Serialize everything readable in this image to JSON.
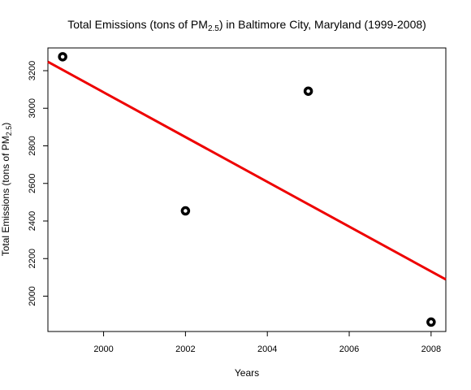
{
  "chart_data": {
    "type": "scatter",
    "title_prefix": "Total Emissions (tons of PM",
    "title_sub": "2.5",
    "title_suffix": ") in Baltimore City, Maryland (1999-2008)",
    "xlabel": "Years",
    "ylabel_prefix": "Total Emissions (tons of PM",
    "ylabel_sub": "2.5",
    "ylabel_suffix": ")",
    "x": [
      1999,
      2002,
      2005,
      2008
    ],
    "y": [
      3274,
      2454,
      3091,
      1862
    ],
    "xlim": [
      1998.64,
      2008.36
    ],
    "ylim": [
      1812,
      3321
    ],
    "x_ticks": [
      2000,
      2002,
      2004,
      2006,
      2008
    ],
    "x_tick_labels": [
      "2000",
      "2002",
      "2004",
      "2006",
      "2008"
    ],
    "y_ticks": [
      2000,
      2200,
      2400,
      2600,
      2800,
      3000,
      3200
    ],
    "y_tick_labels": [
      "2000",
      "2200",
      "2400",
      "2600",
      "2800",
      "3000",
      "3200"
    ],
    "regression_line": {
      "x": [
        1998.64,
        2008.36
      ],
      "y": [
        3247,
        2089
      ]
    },
    "grid": false,
    "legend": "none",
    "point_color": "#000000",
    "line_color": "#ee0000"
  }
}
